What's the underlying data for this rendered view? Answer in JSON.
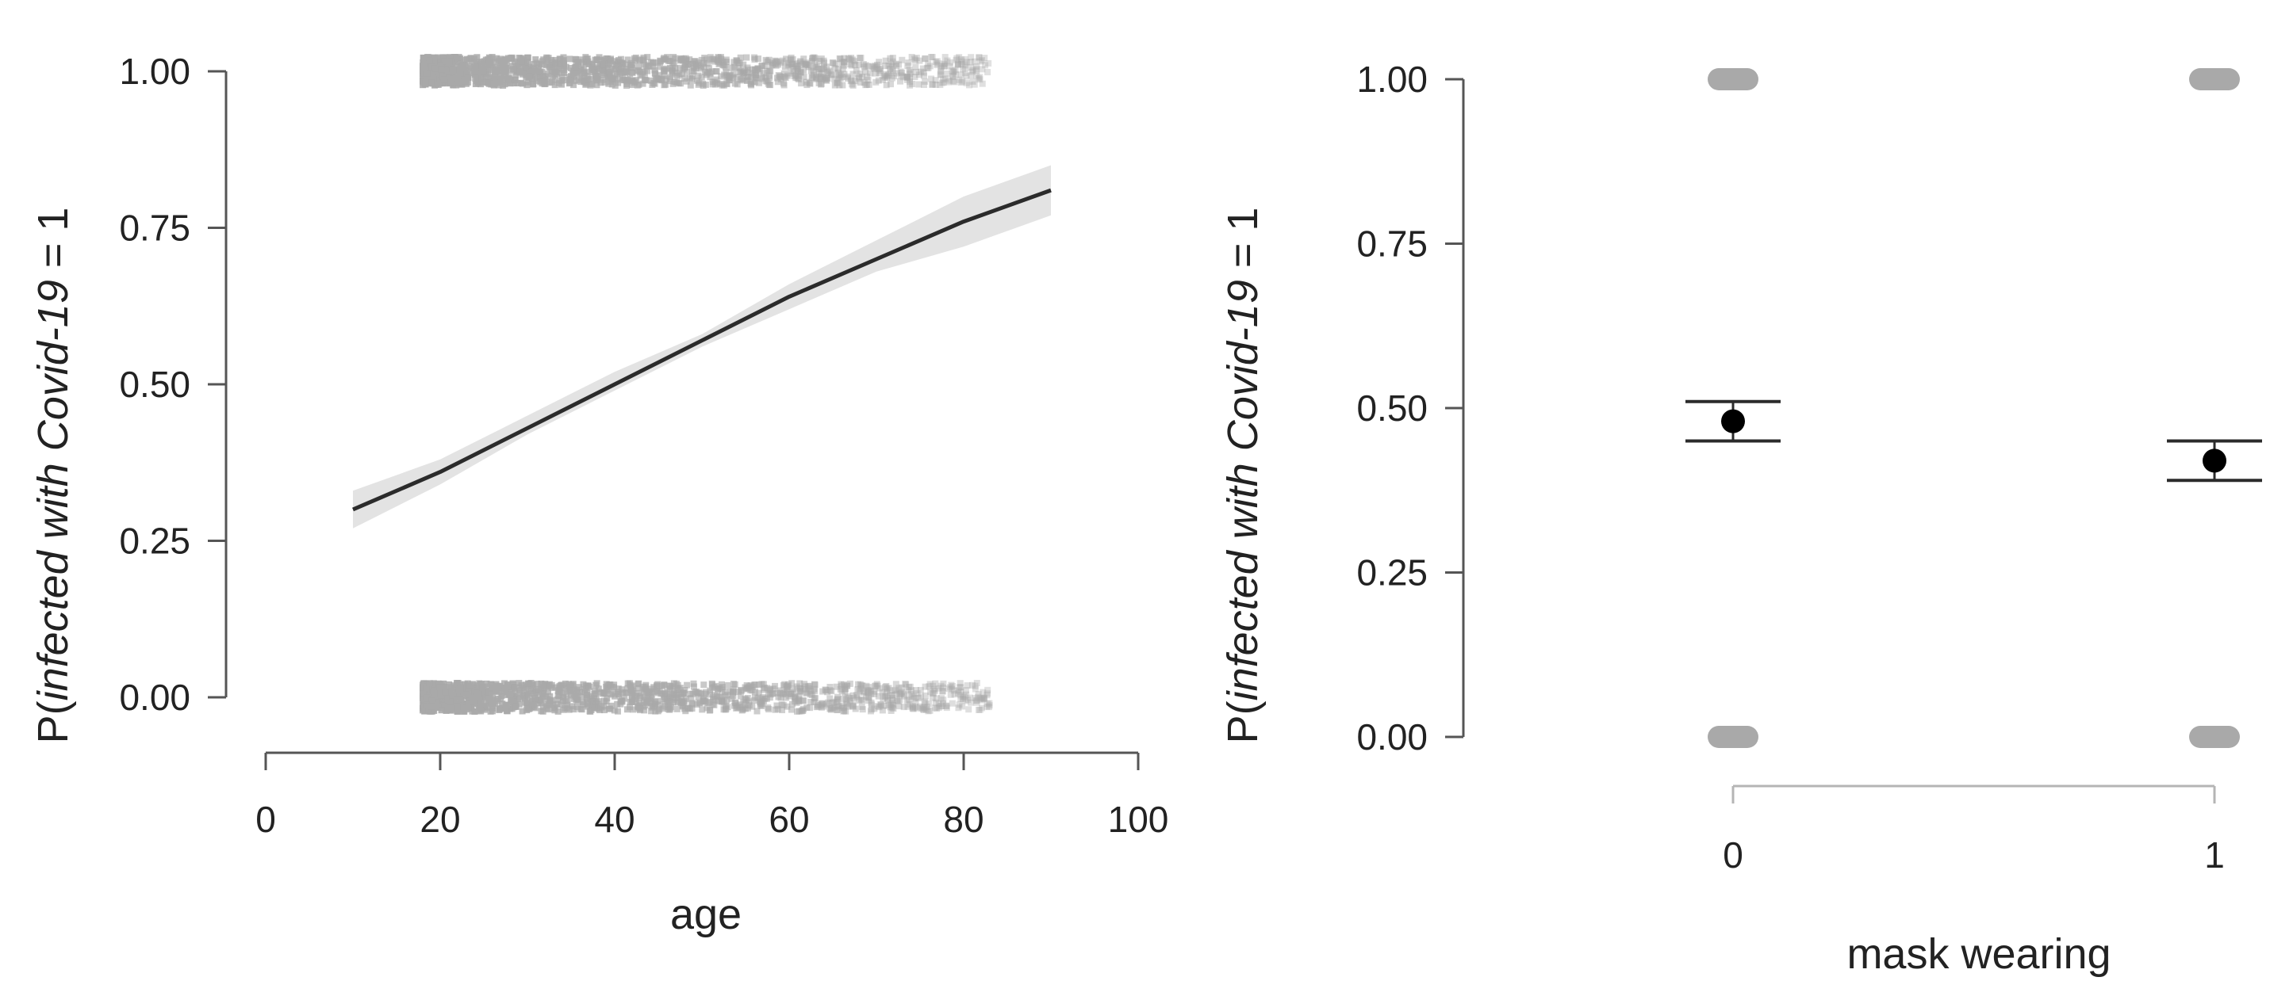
{
  "chart_data": [
    {
      "type": "line",
      "panel": "left",
      "xlabel": "age",
      "ylabel": {
        "prefix": "P(",
        "italic": "infected with Covid-19",
        "suffix": " = 1"
      },
      "xlim": [
        0,
        100
      ],
      "ylim": [
        0,
        1
      ],
      "xticks": [
        0,
        20,
        40,
        60,
        80,
        100
      ],
      "xtick_labels": [
        "0",
        "20",
        "40",
        "60",
        "80",
        "100"
      ],
      "yticks": [
        0,
        0.25,
        0.5,
        0.75,
        1.0
      ],
      "ytick_labels": [
        "0.00",
        "0.25",
        "0.50",
        "0.75",
        "1.00"
      ],
      "grid": false,
      "series": [
        {
          "kind": "fitted-curve-with-ci",
          "x": [
            10,
            20,
            30,
            40,
            50,
            60,
            70,
            80,
            90
          ],
          "y": [
            0.3,
            0.36,
            0.43,
            0.5,
            0.57,
            0.64,
            0.7,
            0.76,
            0.81
          ],
          "ci_low": [
            0.27,
            0.34,
            0.42,
            0.49,
            0.56,
            0.62,
            0.68,
            0.72,
            0.77
          ],
          "ci_high": [
            0.33,
            0.38,
            0.45,
            0.52,
            0.58,
            0.66,
            0.73,
            0.8,
            0.85
          ]
        },
        {
          "kind": "raw-observations",
          "outcome_1_age_range": [
            18,
            83
          ],
          "outcome_0_age_range": [
            18,
            83
          ]
        }
      ],
      "colors": {
        "line": "#2b2b2b",
        "ci_band": "#e3e3e3",
        "points": "#a9a9a9",
        "axis": "#555555"
      }
    },
    {
      "type": "scatter",
      "panel": "right",
      "xlabel": "mask wearing",
      "ylabel": {
        "prefix": "P(",
        "italic": "infected with Covid-19",
        "suffix": " = 1"
      },
      "categories": [
        "0",
        "1"
      ],
      "ylim": [
        0,
        1
      ],
      "yticks": [
        0,
        0.25,
        0.5,
        0.75,
        1.0
      ],
      "ytick_labels": [
        "0.00",
        "0.25",
        "0.50",
        "0.75",
        "1.00"
      ],
      "grid": false,
      "series": [
        {
          "kind": "point-estimate-with-ci",
          "values": [
            0.48,
            0.42
          ],
          "ci_low": [
            0.45,
            0.39
          ],
          "ci_high": [
            0.51,
            0.45
          ]
        },
        {
          "kind": "raw-observations",
          "outcomes": [
            0,
            1
          ]
        }
      ],
      "colors": {
        "point": "#000000",
        "errorbar": "#2b2b2b",
        "raw": "#a9a9a9",
        "axis": "#555555"
      }
    }
  ]
}
